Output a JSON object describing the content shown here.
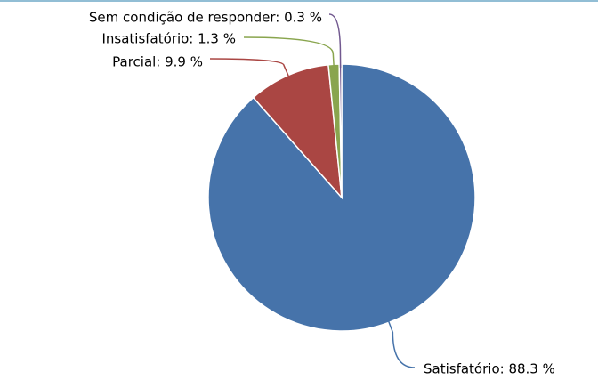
{
  "chart_data": {
    "type": "pie",
    "values": [
      88.3,
      9.9,
      1.3,
      0.3
    ],
    "value_labels": [
      "Satisfatório: 88.3 %",
      "Parcial: 9.9 %",
      "Insatisfatório: 1.3 %",
      "Sem condição de responder: 0.3 %"
    ],
    "colors": [
      "#4673aa",
      "#aa4643",
      "#89a54e",
      "#71588f"
    ]
  }
}
